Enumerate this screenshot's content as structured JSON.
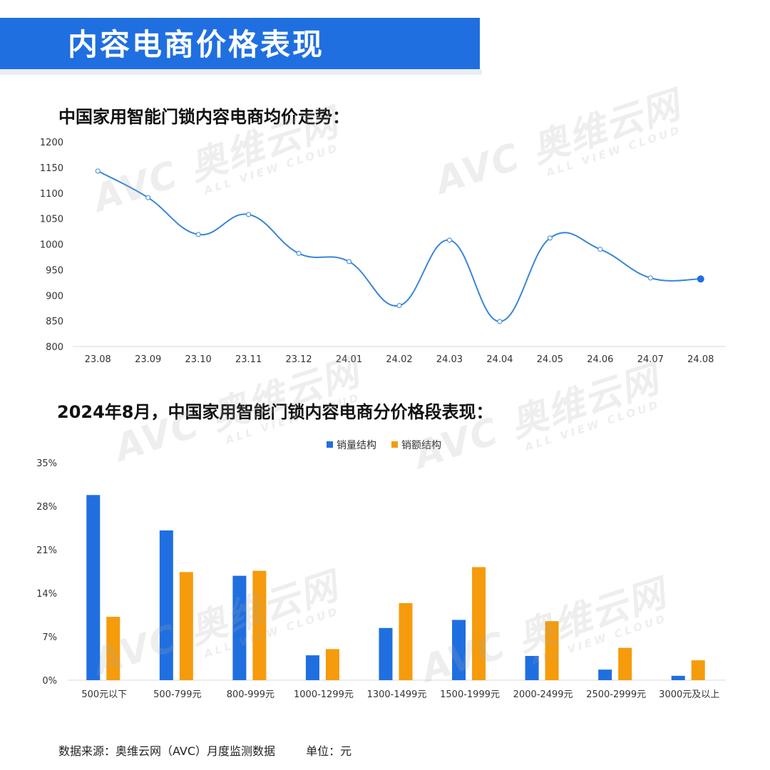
{
  "header": {
    "title": "内容电商价格表现"
  },
  "line_section": {
    "title": "中国家用智能门锁内容电商均价走势："
  },
  "bar_section": {
    "title": "2024年8月，中国家用智能门锁内容电商分价格段表现："
  },
  "watermark": {
    "brand": "AVC",
    "cn": "奥维云网",
    "en": "ALL VIEW CLOUD"
  },
  "footer": {
    "source": "数据来源：奥维云网（AVC）月度监测数据",
    "unit": "单位：元"
  },
  "colors": {
    "banner": "#1f6fe0",
    "line": "#3a86d6",
    "volume": "#1f6fe0",
    "value": "#f59b0c"
  },
  "chart_data": [
    {
      "type": "line",
      "title": "中国家用智能门锁内容电商均价走势：",
      "categories": [
        "23.08",
        "23.09",
        "23.10",
        "23.11",
        "23.12",
        "24.01",
        "24.02",
        "24.03",
        "24.04",
        "24.05",
        "24.06",
        "24.07",
        "24.08"
      ],
      "values": [
        1143,
        1091,
        1019,
        1058,
        982,
        966,
        880,
        1008,
        849,
        1012,
        990,
        934,
        932
      ],
      "ylim": [
        800,
        1200
      ],
      "yticks": [
        800,
        850,
        900,
        950,
        1000,
        1050,
        1100,
        1150,
        1200
      ],
      "grid": false,
      "legend": "none"
    },
    {
      "type": "bar",
      "title": "2024年8月，中国家用智能门锁内容电商分价格段表现：",
      "categories": [
        "500元以下",
        "500-799元",
        "800-999元",
        "1000-1299元",
        "1300-1499元",
        "1500-1999元",
        "2000-2499元",
        "2500-2999元",
        "3000元及以上"
      ],
      "series": [
        {
          "name": "销量结构",
          "values": [
            29.8,
            24.1,
            16.8,
            4.0,
            8.4,
            9.7,
            3.9,
            1.7,
            0.7
          ]
        },
        {
          "name": "销额结构",
          "values": [
            10.2,
            17.4,
            17.6,
            5.0,
            12.4,
            18.2,
            9.5,
            5.2,
            3.2
          ]
        }
      ],
      "ylim": [
        0,
        35
      ],
      "yticks": [
        "0%",
        "7%",
        "14%",
        "21%",
        "28%",
        "35%"
      ],
      "grid": false,
      "legend": "top-center"
    }
  ]
}
